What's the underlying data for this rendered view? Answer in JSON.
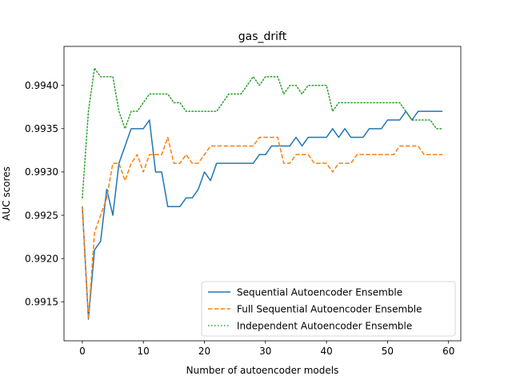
{
  "chart_data": {
    "type": "line",
    "title": "gas_drift",
    "xlabel": "Number of autoencoder models",
    "ylabel": "AUC scores",
    "xlim": [
      -3,
      62
    ],
    "ylim": [
      0.99105,
      0.99445
    ],
    "xticks": [
      0,
      10,
      20,
      30,
      40,
      50,
      60
    ],
    "yticks": [
      0.9915,
      0.992,
      0.9925,
      0.993,
      0.9935,
      0.994
    ],
    "ytick_labels": [
      "0.9915",
      "0.9920",
      "0.9925",
      "0.9930",
      "0.9935",
      "0.9940"
    ],
    "legend_position": "lower-right",
    "grid": false,
    "x": [
      0,
      1,
      2,
      3,
      4,
      5,
      6,
      7,
      8,
      9,
      10,
      11,
      12,
      13,
      14,
      15,
      16,
      17,
      18,
      19,
      20,
      21,
      22,
      23,
      24,
      25,
      26,
      27,
      28,
      29,
      30,
      31,
      32,
      33,
      34,
      35,
      36,
      37,
      38,
      39,
      40,
      41,
      42,
      43,
      44,
      45,
      46,
      47,
      48,
      49,
      50,
      51,
      52,
      53,
      54,
      55,
      56,
      57,
      58,
      59
    ],
    "series": [
      {
        "name": "Sequential Autoencoder Ensemble",
        "color": "#1f77b4",
        "style": "solid",
        "values": [
          0.9926,
          0.9913,
          0.9921,
          0.9922,
          0.9928,
          0.9925,
          0.9931,
          0.9933,
          0.9935,
          0.9935,
          0.9935,
          0.9936,
          0.993,
          0.993,
          0.9926,
          0.9926,
          0.9926,
          0.9927,
          0.9927,
          0.9928,
          0.993,
          0.9929,
          0.9931,
          0.9931,
          0.9931,
          0.9931,
          0.9931,
          0.9931,
          0.9931,
          0.9932,
          0.9932,
          0.9933,
          0.9933,
          0.9933,
          0.9933,
          0.9934,
          0.9933,
          0.9934,
          0.9934,
          0.9934,
          0.9934,
          0.9935,
          0.9934,
          0.9935,
          0.9934,
          0.9934,
          0.9934,
          0.9935,
          0.9935,
          0.9935,
          0.9936,
          0.9936,
          0.9936,
          0.9937,
          0.9936,
          0.9937,
          0.9937,
          0.9937,
          0.9937,
          0.9937
        ]
      },
      {
        "name": "Full Sequential Autoencoder Ensemble",
        "color": "#ff7f0e",
        "style": "dashed",
        "values": [
          0.9926,
          0.9913,
          0.9923,
          0.9925,
          0.9927,
          0.9931,
          0.9931,
          0.9929,
          0.9931,
          0.9932,
          0.993,
          0.9932,
          0.9932,
          0.9932,
          0.9934,
          0.9931,
          0.9931,
          0.9932,
          0.9931,
          0.9931,
          0.9932,
          0.9933,
          0.9933,
          0.9933,
          0.9933,
          0.9933,
          0.9933,
          0.9933,
          0.9933,
          0.9934,
          0.9934,
          0.9934,
          0.9934,
          0.9931,
          0.9931,
          0.9932,
          0.9932,
          0.9932,
          0.9931,
          0.9931,
          0.9931,
          0.993,
          0.9931,
          0.9931,
          0.9931,
          0.9932,
          0.9932,
          0.9932,
          0.9932,
          0.9932,
          0.9932,
          0.9932,
          0.9933,
          0.9933,
          0.9933,
          0.9933,
          0.9932,
          0.9932,
          0.9932,
          0.9932
        ]
      },
      {
        "name": "Independent Autoencoder Ensemble",
        "color": "#2ca02c",
        "style": "dotted",
        "values": [
          0.9927,
          0.9937,
          0.9942,
          0.9941,
          0.9941,
          0.9941,
          0.9937,
          0.9935,
          0.9937,
          0.9937,
          0.9938,
          0.9939,
          0.9939,
          0.9939,
          0.9939,
          0.9938,
          0.9938,
          0.9937,
          0.9937,
          0.9937,
          0.9937,
          0.9937,
          0.9937,
          0.9938,
          0.9939,
          0.9939,
          0.9939,
          0.994,
          0.9941,
          0.994,
          0.9941,
          0.9941,
          0.9941,
          0.9939,
          0.994,
          0.994,
          0.9939,
          0.994,
          0.994,
          0.994,
          0.994,
          0.9937,
          0.9938,
          0.9938,
          0.9938,
          0.9938,
          0.9938,
          0.9938,
          0.9938,
          0.9938,
          0.9938,
          0.9938,
          0.9938,
          0.9937,
          0.9936,
          0.9936,
          0.9936,
          0.9936,
          0.9935,
          0.9935
        ]
      }
    ]
  }
}
